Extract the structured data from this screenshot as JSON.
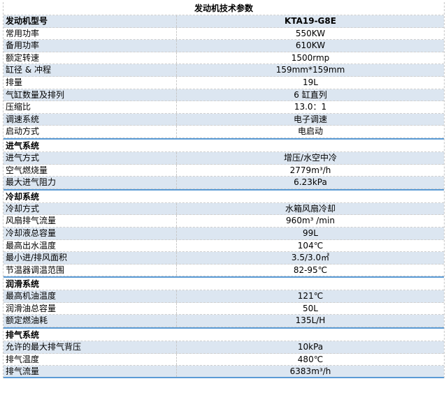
{
  "title": "发动机技术参数",
  "colors": {
    "stripe": "#dce6f1",
    "section_border": "#5b9bd5"
  },
  "model": {
    "label": "发动机型号",
    "value": "KTA19-G8E"
  },
  "general": [
    {
      "label": "常用功率",
      "value": "550KW"
    },
    {
      "label": "备用功率",
      "value": "610KW"
    },
    {
      "label": "额定转速",
      "value": "1500rmp"
    },
    {
      "label": "缸径  & 冲程",
      "value": "159mm*159mm"
    },
    {
      "label": "排量",
      "value": "19L"
    },
    {
      "label": "气缸数量及排列",
      "value": "6 缸直列"
    },
    {
      "label": "压缩比",
      "value": "13.0：1"
    },
    {
      "label": "调速系统",
      "value": "电子调速"
    },
    {
      "label": "启动方式",
      "value": "电启动"
    }
  ],
  "sections": [
    {
      "heading": "进气系统",
      "rows": [
        {
          "label": "进气方式",
          "value": "增压/水空中冷"
        },
        {
          "label": "空气燃烧量",
          "value": "2779m³/h"
        },
        {
          "label": "最大进气阻力",
          "value": "6.23kPa"
        }
      ]
    },
    {
      "heading": "冷却系统",
      "rows": [
        {
          "label": "冷却方式",
          "value": "水箱风扇冷却"
        },
        {
          "label": "风扇排气流量",
          "value": "960m³  /min"
        },
        {
          "label": "冷却液总容量",
          "value": "99L"
        },
        {
          "label": "最高出水温度",
          "value": "104℃"
        },
        {
          "label": "最小进/排风面积",
          "value": "3.5/3.0㎡"
        },
        {
          "label": "节温器调温范围",
          "value": "82-95℃"
        }
      ]
    },
    {
      "heading": "润滑系统",
      "rows": [
        {
          "label": "最高机油温度",
          "value": "121℃"
        },
        {
          "label": "润滑油总容量",
          "value": "50L"
        },
        {
          "label": "额定燃油耗",
          "value": "135L/H"
        }
      ]
    },
    {
      "heading": "排气系统",
      "rows": [
        {
          "label": "允许的最大排气背压",
          "value": "10kPa"
        },
        {
          "label": "排气温度",
          "value": "480℃"
        },
        {
          "label": "排气流量",
          "value": "6383m³/h"
        }
      ]
    }
  ]
}
